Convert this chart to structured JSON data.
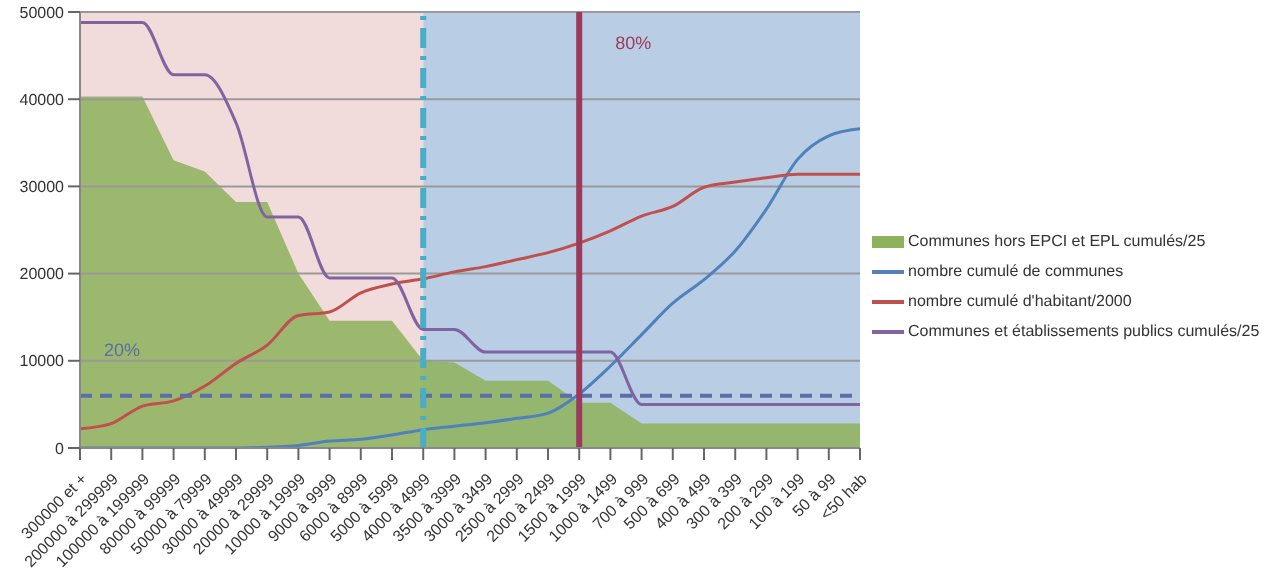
{
  "chart_data": {
    "type": "line",
    "categories": [
      "300000 et +",
      "200000 à 299999",
      "100000 à 199999",
      "80000 à 99999",
      "50000 à 79999",
      "30000 à 49999",
      "20000 à 29999",
      "10000 à 19999",
      "9000 à 9999",
      "6000 à 8999",
      "5000 à 5999",
      "4000 à 4999",
      "3500 à 3999",
      "3000 à 3499",
      "2500 à 2999",
      "2000 à 2499",
      "1500 à 1999",
      "1000 à 1499",
      "700 à 999",
      "500 à 699",
      "400 à 499",
      "300 à 399",
      "200 à 299",
      "100 à 199",
      "50 à 99",
      "<50 hab"
    ],
    "series": [
      {
        "name": "Communes hors EPCI et EPL cumulés/25",
        "type": "area",
        "color": "#8db25a",
        "values": [
          40300,
          40300,
          40300,
          33000,
          31700,
          28200,
          28200,
          20000,
          14600,
          14600,
          14600,
          10000,
          9800,
          7700,
          7700,
          7700,
          5200,
          5200,
          2800,
          2800,
          2800,
          2800,
          2800,
          2800,
          2800,
          2800
        ]
      },
      {
        "name": "nombre cumulé de communes",
        "color": "#4f81bd",
        "values": [
          0,
          0,
          0,
          0,
          0,
          0,
          100,
          300,
          800,
          1000,
          1500,
          2100,
          2500,
          2900,
          3400,
          4000,
          6200,
          9400,
          13000,
          16600,
          19300,
          22600,
          27400,
          33100,
          35800,
          36600
        ]
      },
      {
        "name": "nombre cumulé d'habitant/2000",
        "color": "#c0504d",
        "values": [
          2200,
          2800,
          4800,
          5400,
          7100,
          9700,
          11800,
          15200,
          15600,
          17800,
          18800,
          19400,
          20200,
          20800,
          21600,
          22400,
          23500,
          24900,
          26600,
          27700,
          29900,
          30500,
          31000,
          31400,
          31400,
          31400
        ]
      },
      {
        "name": "Communes et établissements publics cumulés/25",
        "color": "#8064a2",
        "values": [
          48800,
          48800,
          48800,
          42800,
          42800,
          37300,
          26500,
          26500,
          19500,
          19500,
          19500,
          13600,
          13600,
          11000,
          11000,
          11000,
          11000,
          11000,
          5000,
          5000,
          5000,
          5000,
          5000,
          5000,
          5000,
          5000
        ]
      }
    ],
    "ylim": [
      0,
      50000
    ],
    "yticks": [
      0,
      10000,
      20000,
      30000,
      40000,
      50000
    ],
    "annotations": [
      "20%"
    ],
    "grid": "y",
    "legend": "right",
    "marker": "none",
    "bands": [
      {
        "axis": "x",
        "from": "300000 et +",
        "to": "4000 à 4999",
        "color": "#f2dcdb"
      },
      {
        "axis": "x",
        "from": "4000 à 4999",
        "to": "<50 hab",
        "color": "#b9cde5"
      }
    ],
    "ref_lines": [
      {
        "axis": "y",
        "value": 6000,
        "color": "#5a6ea8",
        "line_style": "dashed"
      },
      {
        "axis": "x",
        "value": "4000 à 4999",
        "color": "#4bacc6",
        "line_style": "dashdot"
      },
      {
        "axis": "x",
        "value": "1500 à 1999",
        "label": "80%",
        "color": "#9b3a5a",
        "line_style": "solid"
      }
    ]
  }
}
